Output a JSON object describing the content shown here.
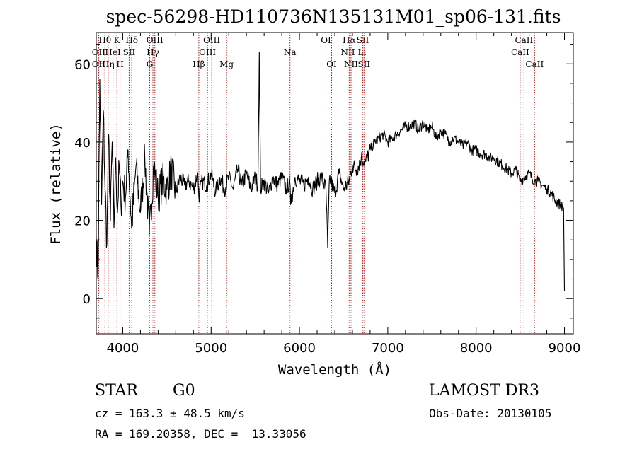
{
  "chart_data": {
    "type": "line",
    "title": "spec-56298-HD110736N135131M01_sp06-131.fits",
    "xlabel": "Wavelength (Å)",
    "ylabel": "Flux (relative)",
    "xlim": [
      3700,
      9100
    ],
    "ylim": [
      -9,
      68
    ],
    "xticks": [
      4000,
      5000,
      6000,
      7000,
      8000,
      9000
    ],
    "yticks": [
      0,
      20,
      40,
      60
    ],
    "series": [
      {
        "name": "flux",
        "x": [
          3700,
          3720,
          3740,
          3760,
          3780,
          3800,
          3820,
          3840,
          3860,
          3880,
          3900,
          3920,
          3940,
          3960,
          3980,
          4000,
          4030,
          4060,
          4100,
          4150,
          4200,
          4250,
          4300,
          4350,
          4400,
          4450,
          4500,
          4550,
          4600,
          4650,
          4700,
          4750,
          4800,
          4850,
          4861,
          4900,
          4950,
          5000,
          5050,
          5100,
          5150,
          5200,
          5250,
          5300,
          5350,
          5400,
          5450,
          5500,
          5530,
          5545,
          5560,
          5600,
          5650,
          5700,
          5750,
          5800,
          5850,
          5890,
          5900,
          5950,
          6000,
          6050,
          6100,
          6150,
          6200,
          6250,
          6300,
          6320,
          6340,
          6400,
          6450,
          6500,
          6563,
          6600,
          6650,
          6700,
          6750,
          6800,
          6850,
          6900,
          6950,
          7000,
          7050,
          7100,
          7150,
          7200,
          7250,
          7300,
          7350,
          7400,
          7450,
          7500,
          7550,
          7600,
          7650,
          7700,
          7750,
          7800,
          7850,
          7900,
          7950,
          8000,
          8050,
          8100,
          8150,
          8200,
          8250,
          8300,
          8350,
          8400,
          8450,
          8498,
          8542,
          8600,
          8662,
          8700,
          8750,
          8800,
          8850,
          8900,
          8950,
          8990,
          9000
        ],
        "values": [
          16,
          5,
          56,
          24,
          48,
          28,
          14,
          42,
          20,
          40,
          18,
          36,
          22,
          34,
          24,
          30,
          26,
          38,
          18,
          34,
          22,
          36,
          16,
          34,
          26,
          30,
          28,
          33,
          27,
          31,
          29,
          30,
          28,
          32,
          26,
          30,
          29,
          32,
          27,
          31,
          28,
          31,
          28,
          33,
          29,
          32,
          28,
          31,
          29,
          63,
          28,
          30,
          27,
          31,
          29,
          31,
          28,
          30,
          24,
          31,
          30,
          29,
          31,
          28,
          30,
          31,
          28,
          13,
          31,
          27,
          32,
          28,
          30,
          34,
          33,
          36,
          35,
          38,
          40,
          41,
          42,
          40,
          41,
          42,
          43,
          44,
          44,
          45,
          43,
          45,
          43,
          44,
          41,
          43,
          42,
          40,
          41,
          40,
          39,
          40,
          38,
          38,
          37,
          37,
          36,
          36,
          35,
          34,
          33,
          32,
          33,
          30,
          31,
          32,
          30,
          30,
          29,
          28,
          27,
          25,
          24,
          23,
          2
        ]
      }
    ],
    "spectral_lines": [
      {
        "name": "OII",
        "wavelength": 3727,
        "row": 2,
        "color": "#b22222"
      },
      {
        "name": "Hθ",
        "wavelength": 3798,
        "row": 1,
        "color": "#b22222"
      },
      {
        "name": "OII",
        "wavelength": 3727,
        "row": 3,
        "color": "#b22222"
      },
      {
        "name": "Hη",
        "wavelength": 3835,
        "row": 3,
        "color": "#b22222"
      },
      {
        "name": "HeI",
        "wavelength": 3889,
        "row": 2,
        "color": "#b22222"
      },
      {
        "name": "K",
        "wavelength": 3934,
        "row": 1,
        "color": "#b22222"
      },
      {
        "name": "H",
        "wavelength": 3969,
        "row": 3,
        "color": "#b22222"
      },
      {
        "name": "SII",
        "wavelength": 4072,
        "row": 2,
        "color": "#b22222"
      },
      {
        "name": "Hδ",
        "wavelength": 4102,
        "row": 1,
        "color": "#b22222"
      },
      {
        "name": "OIII",
        "wavelength": 4363,
        "row": 1,
        "color": "#b22222"
      },
      {
        "name": "Hγ",
        "wavelength": 4341,
        "row": 2,
        "color": "#b22222"
      },
      {
        "name": "G",
        "wavelength": 4305,
        "row": 3,
        "color": "#b22222"
      },
      {
        "name": "Hβ",
        "wavelength": 4861,
        "row": 3,
        "color": "#b22222"
      },
      {
        "name": "OIII",
        "wavelength": 5007,
        "row": 1,
        "color": "#b22222"
      },
      {
        "name": "OIII",
        "wavelength": 4959,
        "row": 2,
        "color": "#b22222"
      },
      {
        "name": "Mg",
        "wavelength": 5175,
        "row": 3,
        "color": "#b22222"
      },
      {
        "name": "Na",
        "wavelength": 5893,
        "row": 2,
        "color": "#b22222"
      },
      {
        "name": "OI",
        "wavelength": 6300,
        "row": 1,
        "color": "#b22222"
      },
      {
        "name": "OI",
        "wavelength": 6364,
        "row": 3,
        "color": "#b22222"
      },
      {
        "name": "Hα",
        "wavelength": 6563,
        "row": 1,
        "color": "#b22222"
      },
      {
        "name": "NII",
        "wavelength": 6548,
        "row": 2,
        "color": "#b22222"
      },
      {
        "name": "NII",
        "wavelength": 6584,
        "row": 3,
        "color": "#b22222"
      },
      {
        "name": "SII",
        "wavelength": 6717,
        "row": 1,
        "color": "#b22222"
      },
      {
        "name": "Li",
        "wavelength": 6708,
        "row": 2,
        "color": "#b22222"
      },
      {
        "name": "SII",
        "wavelength": 6731,
        "row": 3,
        "color": "#b22222"
      },
      {
        "name": "CaII",
        "wavelength": 8542,
        "row": 1,
        "color": "#b22222"
      },
      {
        "name": "CaII",
        "wavelength": 8498,
        "row": 2,
        "color": "#b22222"
      },
      {
        "name": "CaII",
        "wavelength": 8662,
        "row": 3,
        "color": "#b22222"
      }
    ]
  },
  "info": {
    "object_class": "STAR",
    "subclass": "G0",
    "survey": "LAMOST DR3",
    "cz": "cz = 163.3 ± 48.5 km/s",
    "obs_date": "Obs-Date: 20130105",
    "coords": "RA = 169.20358, DEC =  13.33056"
  }
}
